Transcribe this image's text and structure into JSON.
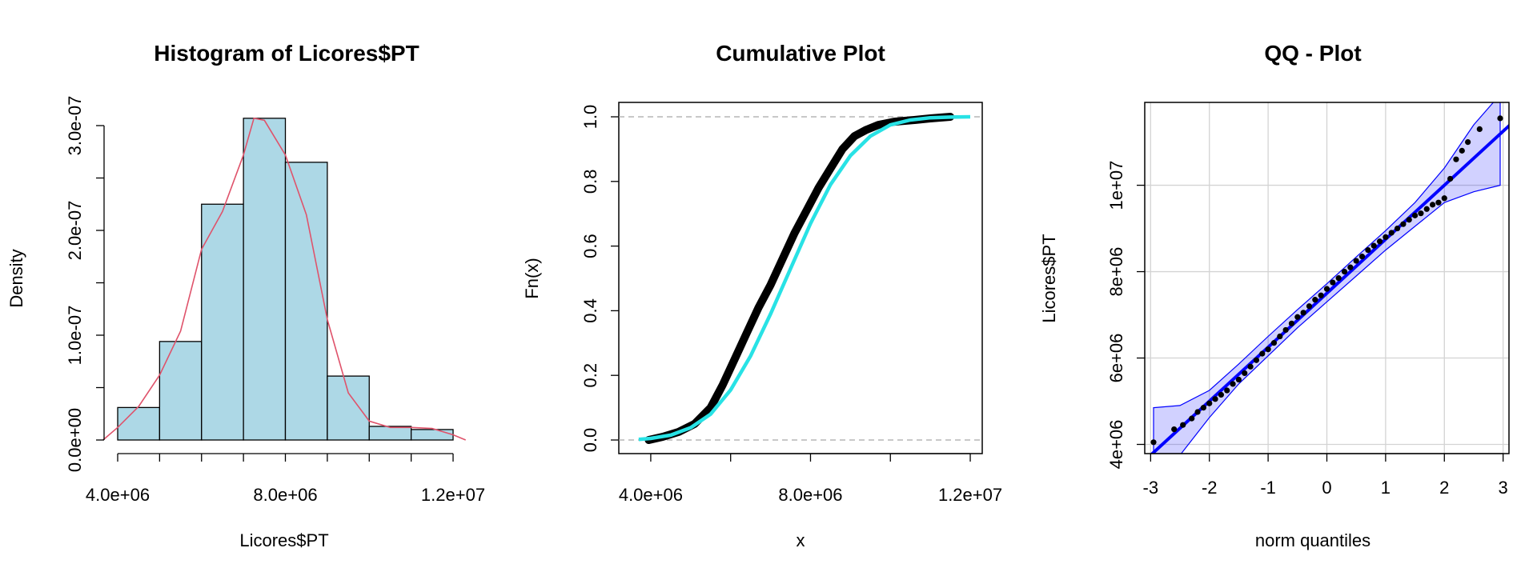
{
  "chart_data": [
    {
      "type": "bar",
      "title": "Histogram of Licores$PT",
      "xlabel": "Licores$PT",
      "ylabel": "Density",
      "xlim": [
        4000000,
        12000000
      ],
      "ylim": [
        0,
        3e-07
      ],
      "x_ticks": [
        "4.0e+06",
        "8.0e+06",
        "1.2e+07"
      ],
      "y_ticks": [
        "0.0e+00",
        "1.0e-07",
        "2.0e-07",
        "3.0e-07"
      ],
      "bin_edges": [
        4000000,
        5000000,
        6000000,
        7000000,
        8000000,
        9000000,
        10000000,
        11000000,
        12000000
      ],
      "values": [
        3.1e-08,
        9.4e-08,
        2.25e-07,
        3.07e-07,
        2.65e-07,
        6.1e-08,
        1.3e-08,
        1e-08
      ],
      "bar_fill": "#add8e6",
      "density_curve": {
        "color": "#df536b",
        "x": [
          3650000,
          4000000,
          4500000,
          5000000,
          5500000,
          6000000,
          6500000,
          7000000,
          7250000,
          7500000,
          8000000,
          8500000,
          9000000,
          9500000,
          10000000,
          10500000,
          11000000,
          11500000,
          12000000,
          12300000
        ],
        "y": [
          0.0,
          1.2e-08,
          3.2e-08,
          6.2e-08,
          1.04e-07,
          1.82e-07,
          2.18e-07,
          2.72e-07,
          3.07e-07,
          3.05e-07,
          2.72e-07,
          2.15e-07,
          1.15e-07,
          4.5e-08,
          1.8e-08,
          1.2e-08,
          1.2e-08,
          1.1e-08,
          5e-09,
          0.0
        ]
      }
    },
    {
      "type": "line",
      "title": "Cumulative Plot",
      "xlabel": "x",
      "ylabel": "Fn(x)",
      "xlim": [
        3200000,
        12300000
      ],
      "ylim": [
        0,
        1
      ],
      "x_ticks": [
        "4.0e+06",
        "8.0e+06",
        "1.2e+07"
      ],
      "y_ticks": [
        "0.0",
        "0.2",
        "0.4",
        "0.6",
        "0.8",
        "1.0"
      ],
      "reference_lines": [
        0,
        1
      ],
      "series": [
        {
          "color": "#000000",
          "x": [
            3950000,
            4300000,
            4700000,
            5100000,
            5500000,
            5800000,
            6100000,
            6400000,
            6700000,
            7000000,
            7300000,
            7600000,
            7900000,
            8200000,
            8500000,
            8800000,
            9100000,
            9400000,
            9700000,
            10100000,
            10600000,
            11000000,
            11500000
          ],
          "y": [
            0.0,
            0.01,
            0.025,
            0.05,
            0.1,
            0.17,
            0.25,
            0.33,
            0.41,
            0.48,
            0.56,
            0.64,
            0.71,
            0.78,
            0.84,
            0.9,
            0.94,
            0.96,
            0.975,
            0.985,
            0.99,
            0.995,
            1.0
          ]
        },
        {
          "color": "#28e2e5",
          "x": [
            3700000,
            4000000,
            4500000,
            5000000,
            5500000,
            6000000,
            6500000,
            7000000,
            7500000,
            8000000,
            8500000,
            9000000,
            9500000,
            10000000,
            10500000,
            11000000,
            11500000,
            12000000
          ],
          "y": [
            0.002,
            0.005,
            0.015,
            0.038,
            0.08,
            0.155,
            0.26,
            0.39,
            0.53,
            0.67,
            0.79,
            0.88,
            0.94,
            0.975,
            0.99,
            0.997,
            0.999,
            1.0
          ]
        }
      ]
    },
    {
      "type": "scatter",
      "title": "QQ - Plot",
      "xlabel": "norm quantiles",
      "ylabel": "Licores$PT",
      "xlim": [
        -3.1,
        3.1
      ],
      "ylim": [
        3750000,
        11900000
      ],
      "x_ticks": [
        "-3",
        "-2",
        "-1",
        "0",
        "1",
        "2",
        "3"
      ],
      "y_ticks": [
        "4e+06",
        "6e+06",
        "8e+06",
        "1e+07"
      ],
      "grid": true,
      "line": {
        "color": "#0000ff",
        "intercept": 7500000,
        "slope": 1250000
      },
      "band": {
        "color": "#0000ff",
        "x": [
          -2.95,
          -2.5,
          -2.0,
          -1.5,
          -1.0,
          -0.5,
          0.0,
          0.5,
          1.0,
          1.5,
          2.0,
          2.5,
          2.95
        ],
        "upper": [
          4850000,
          4900000,
          5250000,
          5860000,
          6500000,
          7120000,
          7720000,
          8340000,
          8950000,
          9600000,
          10400000,
          11400000,
          12100000
        ],
        "lower": [
          3600000,
          3750000,
          4620000,
          5400000,
          6050000,
          6700000,
          7300000,
          7900000,
          8500000,
          9050000,
          9600000,
          9850000,
          10000000
        ]
      },
      "points": {
        "color": "#000000",
        "x": [
          -2.95,
          -2.6,
          -2.45,
          -2.3,
          -2.2,
          -2.1,
          -2.0,
          -1.9,
          -1.8,
          -1.7,
          -1.6,
          -1.5,
          -1.4,
          -1.3,
          -1.2,
          -1.1,
          -1.0,
          -0.9,
          -0.8,
          -0.7,
          -0.6,
          -0.5,
          -0.4,
          -0.3,
          -0.2,
          -0.1,
          0.0,
          0.1,
          0.2,
          0.3,
          0.4,
          0.5,
          0.6,
          0.7,
          0.8,
          0.9,
          1.0,
          1.1,
          1.2,
          1.3,
          1.4,
          1.5,
          1.6,
          1.7,
          1.8,
          1.9,
          2.0,
          2.1,
          2.2,
          2.3,
          2.4,
          2.6,
          2.95
        ],
        "y": [
          4050000,
          4350000,
          4450000,
          4600000,
          4750000,
          4850000,
          4950000,
          5050000,
          5150000,
          5250000,
          5400000,
          5500000,
          5650000,
          5800000,
          5950000,
          6100000,
          6200000,
          6350000,
          6500000,
          6650000,
          6800000,
          6950000,
          7050000,
          7200000,
          7350000,
          7450000,
          7600000,
          7750000,
          7850000,
          8000000,
          8100000,
          8250000,
          8350000,
          8500000,
          8600000,
          8700000,
          8800000,
          8900000,
          9000000,
          9100000,
          9200000,
          9300000,
          9350000,
          9450000,
          9550000,
          9600000,
          9700000,
          10150000,
          10600000,
          10800000,
          11000000,
          11300000,
          11550000
        ]
      }
    }
  ]
}
